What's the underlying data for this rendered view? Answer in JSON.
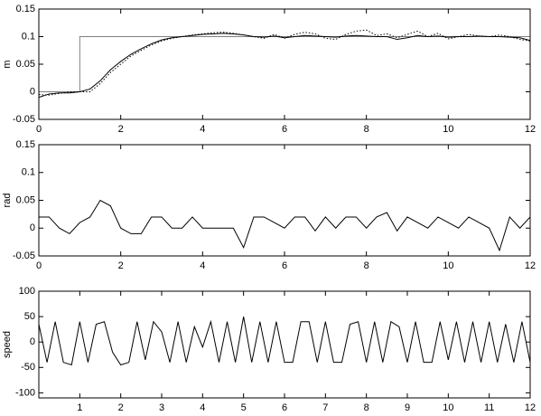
{
  "chart_data": [
    {
      "type": "line",
      "ylabel": "m",
      "x": [
        0,
        0.25,
        0.5,
        0.75,
        1,
        1,
        1.25,
        1.5,
        1.75,
        2,
        2.25,
        2.5,
        2.75,
        3,
        3.25,
        3.5,
        3.75,
        4,
        4.25,
        4.5,
        4.75,
        5,
        5.25,
        5.5,
        5.75,
        6,
        6.25,
        6.5,
        6.75,
        7,
        7.25,
        7.5,
        7.75,
        8,
        8.25,
        8.5,
        8.75,
        9,
        9.25,
        9.5,
        9.75,
        10,
        10.25,
        10.5,
        10.75,
        11,
        11.25,
        11.5,
        11.75,
        12
      ],
      "series": [
        {
          "color": "#808080",
          "style": "solid",
          "values": [
            0,
            0,
            0,
            0,
            0,
            0.1,
            0.1,
            0.1,
            0.1,
            0.1,
            0.1,
            0.1,
            0.1,
            0.1,
            0.1,
            0.1,
            0.1,
            0.1,
            0.1,
            0.1,
            0.1,
            0.1,
            0.1,
            0.1,
            0.1,
            0.1,
            0.1,
            0.1,
            0.1,
            0.1,
            0.1,
            0.1,
            0.1,
            0.1,
            0.1,
            0.1,
            0.1,
            0.1,
            0.1,
            0.1,
            0.1,
            0.1,
            0.1,
            0.1,
            0.1,
            0.1,
            0.1,
            0.1,
            0.1,
            0.1
          ]
        },
        {
          "color": "#000000",
          "style": "solid",
          "values": [
            -0.01,
            -0.004,
            -0.002,
            -0.002,
            0,
            0,
            0.005,
            0.02,
            0.04,
            0.055,
            0.068,
            0.078,
            0.087,
            0.094,
            0.098,
            0.1,
            0.102,
            0.104,
            0.105,
            0.106,
            0.105,
            0.103,
            0.1,
            0.099,
            0.101,
            0.098,
            0.1,
            0.102,
            0.101,
            0.1,
            0.099,
            0.101,
            0.102,
            0.101,
            0.1,
            0.1,
            0.095,
            0.098,
            0.102,
            0.1,
            0.101,
            0.099,
            0.1,
            0.1,
            0.101,
            0.1,
            0.1,
            0.099,
            0.098,
            0.093
          ]
        },
        {
          "color": "#000000",
          "style": "dotted",
          "values": [
            -0.005,
            -0.006,
            -0.003,
            0,
            0,
            0,
            0.0,
            0.015,
            0.035,
            0.05,
            0.065,
            0.075,
            0.085,
            0.092,
            0.097,
            0.1,
            0.103,
            0.105,
            0.107,
            0.108,
            0.106,
            0.103,
            0.1,
            0.097,
            0.104,
            0.097,
            0.104,
            0.108,
            0.105,
            0.097,
            0.095,
            0.104,
            0.11,
            0.112,
            0.102,
            0.105,
            0.098,
            0.104,
            0.11,
            0.1,
            0.106,
            0.096,
            0.1,
            0.104,
            0.101,
            0.1,
            0.103,
            0.1,
            0.095,
            0.092
          ]
        }
      ],
      "xlim": [
        0,
        12
      ],
      "xticks": [
        0,
        2,
        4,
        6,
        8,
        10,
        12
      ],
      "ylim": [
        -0.05,
        0.15
      ],
      "yticks": [
        -0.05,
        0,
        0.05,
        0.1,
        0.15
      ]
    },
    {
      "type": "line",
      "ylabel": "rad",
      "x": [
        0,
        0.25,
        0.5,
        0.75,
        1,
        1.25,
        1.5,
        1.75,
        2,
        2.25,
        2.5,
        2.75,
        3,
        3.25,
        3.5,
        3.75,
        4,
        4.25,
        4.5,
        4.75,
        5,
        5.25,
        5.5,
        5.75,
        6,
        6.25,
        6.5,
        6.75,
        7,
        7.25,
        7.5,
        7.75,
        8,
        8.25,
        8.5,
        8.75,
        9,
        9.25,
        9.5,
        9.75,
        10,
        10.25,
        10.5,
        10.75,
        11,
        11.25,
        11.5,
        11.75,
        12
      ],
      "series": [
        {
          "color": "#000000",
          "style": "solid",
          "values": [
            0.02,
            0.02,
            0.0,
            -0.01,
            0.01,
            0.02,
            0.05,
            0.04,
            0.0,
            -0.01,
            -0.01,
            0.02,
            0.02,
            0.0,
            0.0,
            0.02,
            0.0,
            0.0,
            0.0,
            0.0,
            -0.035,
            0.02,
            0.02,
            0.01,
            0.0,
            0.02,
            0.02,
            -0.005,
            0.02,
            0.0,
            0.02,
            0.02,
            0.0,
            0.02,
            0.028,
            -0.005,
            0.02,
            0.01,
            0.0,
            0.02,
            0.01,
            0.0,
            0.02,
            0.01,
            0.0,
            -0.04,
            0.02,
            0.0,
            0.02
          ]
        }
      ],
      "xlim": [
        0,
        12
      ],
      "xticks": [
        0,
        2,
        4,
        6,
        8,
        10,
        12
      ],
      "ylim": [
        -0.05,
        0.15
      ],
      "yticks": [
        -0.05,
        0,
        0.05,
        0.1,
        0.15
      ]
    },
    {
      "type": "line",
      "ylabel": "speed",
      "x": [
        0,
        0.2,
        0.4,
        0.6,
        0.8,
        1,
        1.2,
        1.4,
        1.6,
        1.8,
        2,
        2.2,
        2.4,
        2.6,
        2.8,
        3,
        3.2,
        3.4,
        3.6,
        3.8,
        4,
        4.2,
        4.4,
        4.6,
        4.8,
        5,
        5.2,
        5.4,
        5.6,
        5.8,
        6,
        6.2,
        6.4,
        6.6,
        6.8,
        7,
        7.2,
        7.4,
        7.6,
        7.8,
        8,
        8.2,
        8.4,
        8.6,
        8.8,
        9,
        9.2,
        9.4,
        9.6,
        9.8,
        10,
        10.2,
        10.4,
        10.6,
        10.8,
        11,
        11.2,
        11.4,
        11.6,
        11.8,
        12
      ],
      "series": [
        {
          "color": "#000000",
          "style": "solid",
          "values": [
            35,
            -40,
            40,
            -40,
            -45,
            40,
            -40,
            35,
            40,
            -20,
            -45,
            -40,
            40,
            -35,
            40,
            20,
            -40,
            40,
            -40,
            30,
            -10,
            40,
            -40,
            40,
            -40,
            50,
            -40,
            40,
            -40,
            40,
            -40,
            -40,
            40,
            40,
            -40,
            40,
            -40,
            -40,
            35,
            40,
            -40,
            40,
            -40,
            40,
            30,
            -40,
            40,
            -40,
            -40,
            40,
            -35,
            40,
            -40,
            40,
            -40,
            40,
            -40,
            35,
            -40,
            40,
            -40
          ]
        }
      ],
      "xlim": [
        0,
        12
      ],
      "xticks": [
        1,
        2,
        3,
        4,
        5,
        6,
        7,
        8,
        9,
        10,
        11,
        12
      ],
      "ylim": [
        -110,
        100
      ],
      "yticks": [
        -100,
        -50,
        0,
        50,
        100
      ]
    }
  ]
}
